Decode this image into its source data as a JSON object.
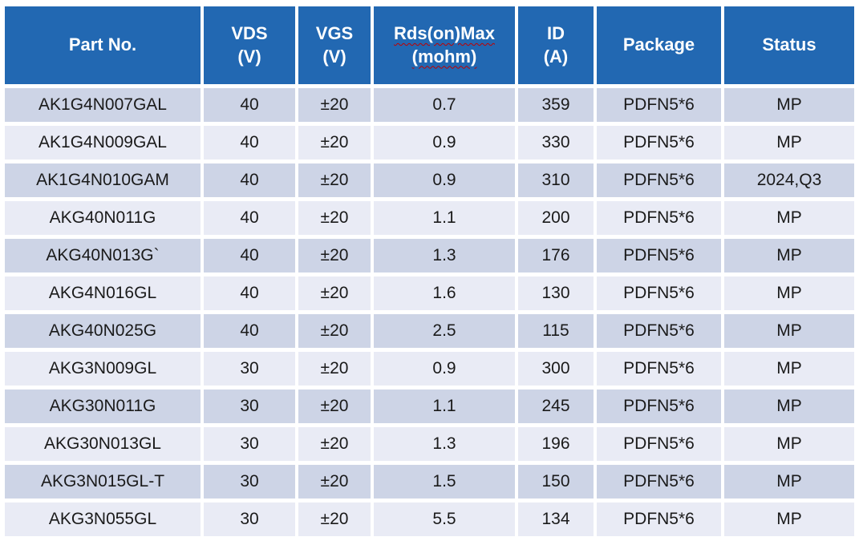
{
  "table": {
    "columns": [
      {
        "label": "Part No.",
        "sub": ""
      },
      {
        "label": "VDS",
        "sub": "(V)"
      },
      {
        "label": "VGS",
        "sub": "(V)"
      },
      {
        "label": "Rds(on)Max",
        "sub": "(mohm)",
        "spellcheck_underline": true
      },
      {
        "label": "ID",
        "sub": "(A)"
      },
      {
        "label": "Package",
        "sub": ""
      },
      {
        "label": "Status",
        "sub": ""
      }
    ],
    "rows": [
      [
        "AK1G4N007GAL",
        "40",
        "±20",
        "0.7",
        "359",
        "PDFN5*6",
        "MP"
      ],
      [
        "AK1G4N009GAL",
        "40",
        "±20",
        "0.9",
        "330",
        "PDFN5*6",
        "MP"
      ],
      [
        "AK1G4N010GAM",
        "40",
        "±20",
        "0.9",
        "310",
        "PDFN5*6",
        "2024,Q3"
      ],
      [
        "AKG40N011G",
        "40",
        "±20",
        "1.1",
        "200",
        "PDFN5*6",
        "MP"
      ],
      [
        "AKG40N013G`",
        "40",
        "±20",
        "1.3",
        "176",
        "PDFN5*6",
        "MP"
      ],
      [
        "AKG4N016GL",
        "40",
        "±20",
        "1.6",
        "130",
        "PDFN5*6",
        "MP"
      ],
      [
        "AKG40N025G",
        "40",
        "±20",
        "2.5",
        "115",
        "PDFN5*6",
        "MP"
      ],
      [
        "AKG3N009GL",
        "30",
        "±20",
        "0.9",
        "300",
        "PDFN5*6",
        "MP"
      ],
      [
        "AKG30N011G",
        "30",
        "±20",
        "1.1",
        "245",
        "PDFN5*6",
        "MP"
      ],
      [
        "AKG30N013GL",
        "30",
        "±20",
        "1.3",
        "196",
        "PDFN5*6",
        "MP"
      ],
      [
        "AKG3N015GL-T",
        "30",
        "±20",
        "1.5",
        "150",
        "PDFN5*6",
        "MP"
      ],
      [
        "AKG3N055GL",
        "30",
        "±20",
        "5.5",
        "134",
        "PDFN5*6",
        "MP"
      ]
    ]
  },
  "colors": {
    "header_bg": "#2268b2",
    "row_dark": "#cdd4e6",
    "row_light": "#e9ebf5",
    "header_text": "#ffffff",
    "body_text": "#1a1a1a",
    "spellcheck_squiggle": "#c00000",
    "page_bg": "#ffffff"
  }
}
